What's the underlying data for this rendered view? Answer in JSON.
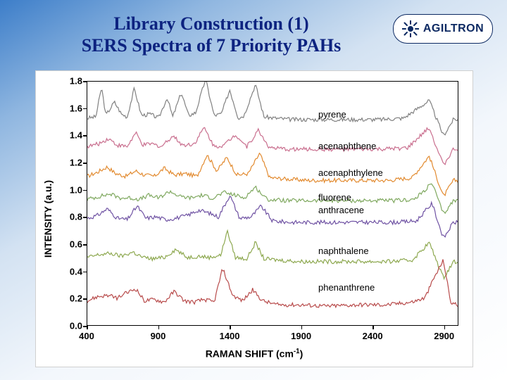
{
  "title_line1": "Library Construction (1)",
  "title_line2": "SERS Spectra of 7 Priority PAHs",
  "logo_text": "AGILTRON",
  "logo_color": "#0c2962",
  "y_axis_label": "INTENSITY (a.u.)",
  "x_axis_label_prefix": "RAMAN SHIFT (cm",
  "x_axis_label_suffix": ")",
  "x_ticks": [
    400,
    900,
    1400,
    1900,
    2400,
    2900
  ],
  "y_ticks": [
    "0.0",
    "0.2",
    "0.4",
    "0.6",
    "0.8",
    "1.0",
    "1.2",
    "1.4",
    "1.6",
    "1.8"
  ],
  "y_min": 0.0,
  "y_max": 1.8,
  "x_min": 400,
  "x_max": 3000,
  "series": [
    {
      "name": "pyrene",
      "color": "#808080",
      "baseline": 1.5,
      "label_y": 1.55,
      "points": [
        [
          400,
          0.03
        ],
        [
          460,
          0.04
        ],
        [
          500,
          0.26
        ],
        [
          530,
          0.05
        ],
        [
          590,
          0.15
        ],
        [
          640,
          0.06
        ],
        [
          680,
          0.04
        ],
        [
          730,
          0.25
        ],
        [
          780,
          0.05
        ],
        [
          840,
          0.06
        ],
        [
          900,
          0.03
        ],
        [
          960,
          0.18
        ],
        [
          1000,
          0.04
        ],
        [
          1060,
          0.22
        ],
        [
          1110,
          0.05
        ],
        [
          1160,
          0.07
        ],
        [
          1230,
          0.32
        ],
        [
          1290,
          0.05
        ],
        [
          1340,
          0.06
        ],
        [
          1400,
          0.24
        ],
        [
          1460,
          0.03
        ],
        [
          1500,
          0.05
        ],
        [
          1580,
          0.28
        ],
        [
          1640,
          0.04
        ],
        [
          1720,
          0.03
        ],
        [
          1830,
          0.02
        ],
        [
          1960,
          0.02
        ],
        [
          2100,
          0.02
        ],
        [
          2280,
          0.02
        ],
        [
          2460,
          0.02
        ],
        [
          2620,
          0.03
        ],
        [
          2800,
          0.16
        ],
        [
          2900,
          -0.1
        ],
        [
          2970,
          0.02
        ]
      ]
    },
    {
      "name": "acenaphthene",
      "color": "#c96e8e",
      "baseline": 1.28,
      "label_y": 1.32,
      "points": [
        [
          400,
          0.04
        ],
        [
          480,
          0.06
        ],
        [
          550,
          0.1
        ],
        [
          610,
          0.05
        ],
        [
          680,
          0.04
        ],
        [
          740,
          0.14
        ],
        [
          790,
          0.05
        ],
        [
          850,
          0.06
        ],
        [
          920,
          0.04
        ],
        [
          1000,
          0.12
        ],
        [
          1070,
          0.05
        ],
        [
          1150,
          0.06
        ],
        [
          1220,
          0.18
        ],
        [
          1290,
          0.04
        ],
        [
          1360,
          0.05
        ],
        [
          1440,
          0.13
        ],
        [
          1520,
          0.04
        ],
        [
          1600,
          0.16
        ],
        [
          1680,
          0.03
        ],
        [
          1800,
          0.02
        ],
        [
          1960,
          0.02
        ],
        [
          2120,
          0.02
        ],
        [
          2300,
          0.02
        ],
        [
          2480,
          0.02
        ],
        [
          2650,
          0.03
        ],
        [
          2800,
          0.18
        ],
        [
          2900,
          -0.1
        ],
        [
          2970,
          0.02
        ]
      ]
    },
    {
      "name": "acenaphthylene",
      "color": "#e28a2f",
      "baseline": 1.05,
      "label_y": 1.12,
      "points": [
        [
          400,
          0.05
        ],
        [
          470,
          0.08
        ],
        [
          540,
          0.12
        ],
        [
          600,
          0.07
        ],
        [
          670,
          0.05
        ],
        [
          740,
          0.09
        ],
        [
          800,
          0.06
        ],
        [
          870,
          0.05
        ],
        [
          940,
          0.11
        ],
        [
          1010,
          0.06
        ],
        [
          1090,
          0.07
        ],
        [
          1170,
          0.05
        ],
        [
          1240,
          0.21
        ],
        [
          1310,
          0.09
        ],
        [
          1380,
          0.19
        ],
        [
          1450,
          0.06
        ],
        [
          1530,
          0.07
        ],
        [
          1610,
          0.22
        ],
        [
          1680,
          0.04
        ],
        [
          1800,
          0.03
        ],
        [
          1950,
          0.02
        ],
        [
          2120,
          0.02
        ],
        [
          2320,
          0.02
        ],
        [
          2520,
          0.02
        ],
        [
          2680,
          0.04
        ],
        [
          2800,
          0.2
        ],
        [
          2900,
          -0.1
        ],
        [
          2970,
          0.02
        ]
      ]
    },
    {
      "name": "fluorene",
      "color": "#7fa85f",
      "baseline": 0.9,
      "label_y": 0.94,
      "points": [
        [
          400,
          0.03
        ],
        [
          480,
          0.05
        ],
        [
          560,
          0.07
        ],
        [
          630,
          0.04
        ],
        [
          700,
          0.04
        ],
        [
          770,
          0.03
        ],
        [
          830,
          0.06
        ],
        [
          900,
          0.04
        ],
        [
          980,
          0.09
        ],
        [
          1050,
          0.05
        ],
        [
          1130,
          0.04
        ],
        [
          1200,
          0.06
        ],
        [
          1280,
          0.04
        ],
        [
          1360,
          0.08
        ],
        [
          1440,
          0.06
        ],
        [
          1500,
          0.04
        ],
        [
          1580,
          0.12
        ],
        [
          1660,
          0.03
        ],
        [
          1800,
          0.02
        ],
        [
          1980,
          0.02
        ],
        [
          2180,
          0.02
        ],
        [
          2380,
          0.02
        ],
        [
          2560,
          0.02
        ],
        [
          2700,
          0.03
        ],
        [
          2820,
          0.15
        ],
        [
          2900,
          -0.08
        ],
        [
          2970,
          0.02
        ]
      ]
    },
    {
      "name": "anthracene",
      "color": "#6f52a3",
      "baseline": 0.74,
      "label_y": 0.85,
      "points": [
        [
          400,
          0.05
        ],
        [
          470,
          0.07
        ],
        [
          540,
          0.12
        ],
        [
          610,
          0.05
        ],
        [
          680,
          0.04
        ],
        [
          750,
          0.14
        ],
        [
          810,
          0.05
        ],
        [
          880,
          0.06
        ],
        [
          950,
          0.04
        ],
        [
          1020,
          0.05
        ],
        [
          1100,
          0.07
        ],
        [
          1180,
          0.11
        ],
        [
          1250,
          0.09
        ],
        [
          1320,
          0.06
        ],
        [
          1400,
          0.22
        ],
        [
          1470,
          0.05
        ],
        [
          1550,
          0.06
        ],
        [
          1620,
          0.14
        ],
        [
          1700,
          0.03
        ],
        [
          1830,
          0.02
        ],
        [
          1990,
          0.02
        ],
        [
          2170,
          0.02
        ],
        [
          2370,
          0.02
        ],
        [
          2560,
          0.02
        ],
        [
          2710,
          0.03
        ],
        [
          2820,
          0.16
        ],
        [
          2900,
          -0.1
        ],
        [
          2970,
          0.02
        ]
      ]
    },
    {
      "name": "naphthalene",
      "color": "#8da84f",
      "baseline": 0.45,
      "label_y": 0.55,
      "points": [
        [
          400,
          0.05
        ],
        [
          480,
          0.07
        ],
        [
          560,
          0.08
        ],
        [
          640,
          0.06
        ],
        [
          720,
          0.09
        ],
        [
          790,
          0.05
        ],
        [
          860,
          0.04
        ],
        [
          940,
          0.05
        ],
        [
          1020,
          0.11
        ],
        [
          1100,
          0.05
        ],
        [
          1180,
          0.06
        ],
        [
          1260,
          0.05
        ],
        [
          1340,
          0.07
        ],
        [
          1380,
          0.25
        ],
        [
          1440,
          0.05
        ],
        [
          1520,
          0.04
        ],
        [
          1580,
          0.16
        ],
        [
          1640,
          0.04
        ],
        [
          1750,
          0.03
        ],
        [
          1900,
          0.02
        ],
        [
          2100,
          0.02
        ],
        [
          2320,
          0.02
        ],
        [
          2520,
          0.02
        ],
        [
          2680,
          0.03
        ],
        [
          2800,
          0.16
        ],
        [
          2900,
          -0.1
        ],
        [
          2970,
          0.02
        ]
      ]
    },
    {
      "name": "phenanthrene",
      "color": "#b84b4b",
      "baseline": 0.12,
      "label_y": 0.28,
      "points": [
        [
          400,
          0.06
        ],
        [
          470,
          0.09
        ],
        [
          540,
          0.1
        ],
        [
          610,
          0.08
        ],
        [
          680,
          0.12
        ],
        [
          740,
          0.15
        ],
        [
          800,
          0.06
        ],
        [
          870,
          0.07
        ],
        [
          940,
          0.05
        ],
        [
          1010,
          0.13
        ],
        [
          1080,
          0.06
        ],
        [
          1150,
          0.05
        ],
        [
          1220,
          0.07
        ],
        [
          1290,
          0.05
        ],
        [
          1350,
          0.3
        ],
        [
          1420,
          0.1
        ],
        [
          1490,
          0.06
        ],
        [
          1560,
          0.14
        ],
        [
          1630,
          0.06
        ],
        [
          1730,
          0.03
        ],
        [
          1890,
          0.03
        ],
        [
          2080,
          0.02
        ],
        [
          2300,
          0.03
        ],
        [
          2500,
          0.03
        ],
        [
          2680,
          0.05
        ],
        [
          2770,
          0.08
        ],
        [
          2830,
          0.22
        ],
        [
          2900,
          0.36
        ],
        [
          2950,
          0.05
        ],
        [
          2990,
          0.03
        ]
      ]
    }
  ],
  "title_fontsize": 26,
  "tick_fontsize": 13,
  "axis_label_fontsize": 14,
  "series_label_fontsize": 13,
  "line_width": 1.2,
  "background_color": "#ffffff"
}
